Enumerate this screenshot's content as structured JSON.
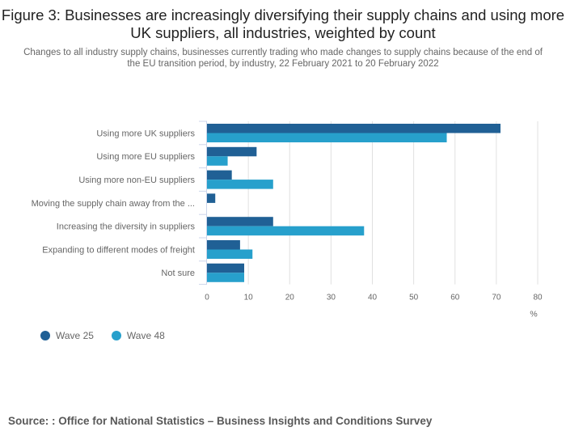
{
  "title": "Figure 3: Businesses are increasingly diversifying their supply chains and using more UK suppliers, all industries, weighted by count",
  "subtitle": "Changes to all industry supply chains, businesses currently trading who made changes to supply chains because of the end of the EU transition period, by industry, 22 February 2021 to 20 February 2022",
  "source": "Source: : Office for National Statistics – Business Insights and Conditions Survey",
  "legend": [
    {
      "label": "Wave 25",
      "color": "#206095"
    },
    {
      "label": "Wave 48",
      "color": "#27a0cc"
    }
  ],
  "chart_data": {
    "type": "bar",
    "orientation": "horizontal",
    "title": "Figure 3: Businesses are increasingly diversifying their supply chains and using more UK suppliers, all industries, weighted by count",
    "categories": [
      "Using more UK suppliers",
      "Using more EU suppliers",
      "Using more non-EU suppliers",
      "Moving the supply chain away from the ...",
      "Increasing the diversity in suppliers",
      "Expanding to different modes of freight",
      "Not sure"
    ],
    "series": [
      {
        "name": "Wave 25",
        "color": "#206095",
        "values": [
          71,
          12,
          6,
          2,
          16,
          8,
          9
        ]
      },
      {
        "name": "Wave 48",
        "color": "#27a0cc",
        "values": [
          58,
          5,
          16,
          0,
          38,
          11,
          9
        ]
      }
    ],
    "xlabel": "%",
    "ylabel": "",
    "xlim": [
      0,
      80
    ],
    "xticks": [
      0,
      10,
      20,
      30,
      40,
      50,
      60,
      70,
      80
    ],
    "grid": true,
    "legend_position": "bottom-left"
  }
}
